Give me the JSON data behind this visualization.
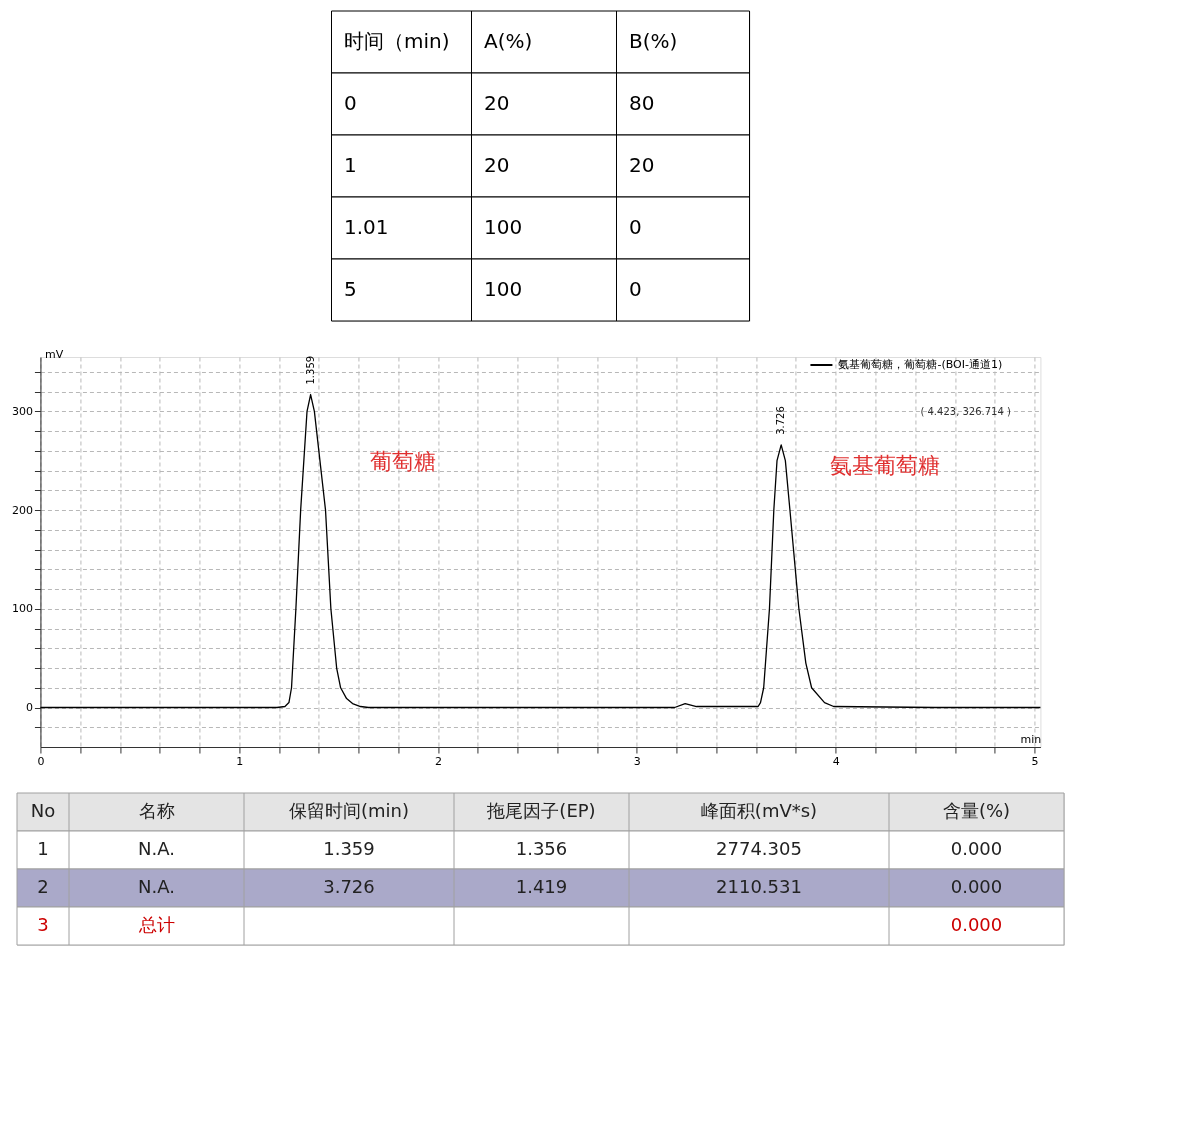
{
  "chart_data": [
    {
      "type": "other",
      "categories": [
        "时间（min)",
        "A(%)",
        "B(%)"
      ],
      "cell_labels": [
        [
          "0",
          "20",
          "80"
        ],
        [
          "1",
          "20",
          "20"
        ],
        [
          "1.01",
          "100",
          "0"
        ],
        [
          "5",
          "100",
          "0"
        ]
      ]
    },
    {
      "type": "line",
      "xlabel": "min",
      "ylabel": "mV",
      "xlim": [
        0,
        5.03
      ],
      "ylim": [
        -40,
        355
      ],
      "xticks": [
        0,
        {
          "value": 0.2,
          "label": null
        },
        {
          "value": 0.4,
          "label": null
        },
        {
          "value": 0.6,
          "label": null
        },
        {
          "value": 0.8,
          "label": null
        },
        1,
        {
          "value": 1.2,
          "label": null
        },
        {
          "value": 1.4,
          "label": null
        },
        {
          "value": 1.6,
          "label": null
        },
        {
          "value": 1.8,
          "label": null
        },
        2,
        {
          "value": 2.2,
          "label": null
        },
        {
          "value": 2.4,
          "label": null
        },
        {
          "value": 2.6,
          "label": null
        },
        {
          "value": 2.8,
          "label": null
        },
        3,
        {
          "value": 3.2,
          "label": null
        },
        {
          "value": 3.4,
          "label": null
        },
        {
          "value": 3.6,
          "label": null
        },
        {
          "value": 3.8,
          "label": null
        },
        4,
        {
          "value": 4.2,
          "label": null
        },
        {
          "value": 4.4,
          "label": null
        },
        {
          "value": 4.6,
          "label": null
        },
        {
          "value": 4.8,
          "label": null
        },
        5
      ],
      "yticks": [
        {
          "value": -20,
          "label": null
        },
        0,
        {
          "value": 20,
          "label": null
        },
        {
          "value": 40,
          "label": null
        },
        {
          "value": 60,
          "label": null
        },
        {
          "value": 80,
          "label": null
        },
        100,
        {
          "value": 120,
          "label": null
        },
        {
          "value": 140,
          "label": null
        },
        {
          "value": 160,
          "label": null
        },
        {
          "value": 180,
          "label": null
        },
        200,
        {
          "value": 220,
          "label": null
        },
        {
          "value": 240,
          "label": null
        },
        {
          "value": 260,
          "label": null
        },
        {
          "value": 280,
          "label": null
        },
        300,
        {
          "value": 320,
          "label": null
        },
        {
          "value": 340,
          "label": null
        }
      ],
      "grid": true,
      "legend": "top right",
      "marker": "none",
      "line_style": "solid",
      "series": [
        {
          "name": "氨基葡萄糖，葡萄糖-(BOI-通道1)",
          "color": "#000000",
          "x": [
            0,
            1.0,
            1.19,
            1.23,
            1.25,
            1.263,
            1.285,
            1.309,
            1.341,
            1.359,
            1.378,
            1.434,
            1.461,
            1.49,
            1.51,
            1.54,
            1.57,
            1.61,
            1.65,
            2.5,
            3.19,
            3.243,
            3.3,
            3.4,
            3.55,
            3.61,
            3.622,
            3.638,
            3.667,
            3.689,
            3.705,
            3.726,
            3.747,
            3.77,
            3.815,
            3.85,
            3.879,
            3.944,
            3.99,
            4.5,
            5.03
          ],
          "values": [
            0,
            0,
            0,
            1,
            5,
            20,
            100,
            200,
            300,
            317,
            300,
            200,
            100,
            40,
            20,
            9,
            4,
            1,
            0,
            0,
            0,
            4,
            1,
            1,
            1,
            1,
            5,
            20,
            100,
            200,
            250,
            266,
            250,
            200,
            100,
            45,
            20,
            5,
            1,
            0,
            0
          ]
        }
      ],
      "annotations": [
        {
          "text": "1.359",
          "x": 1.359,
          "y": 317
        },
        {
          "text": "3.726",
          "x": 3.726,
          "y": 266
        },
        "葡萄糖",
        "氨基葡萄糖",
        "( 4.423, 326.714 )"
      ]
    },
    {
      "type": "other",
      "categories": [
        "No",
        "名称",
        "保留时间(min)",
        "拖尾因子(EP)",
        "峰面积(mV*s)",
        "含量(%)"
      ],
      "cell_labels": [
        [
          "1",
          "N.A.",
          "1.359",
          "1.356",
          "2774.305",
          "0.000"
        ],
        [
          "2",
          "N.A.",
          "3.726",
          "1.419",
          "2110.531",
          "0.000"
        ],
        [
          "3",
          "总计",
          null,
          null,
          null,
          "0.000"
        ]
      ]
    }
  ]
}
